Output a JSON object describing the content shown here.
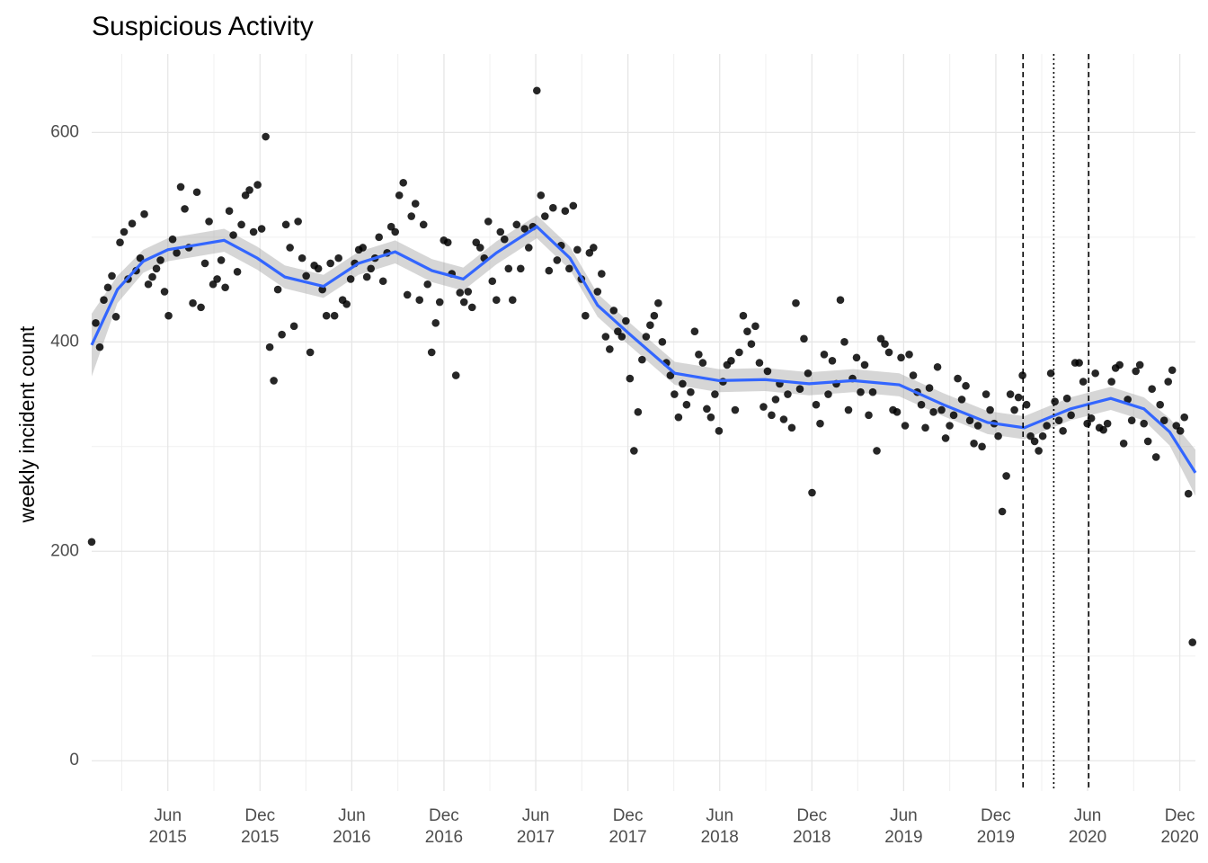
{
  "chart_data": {
    "type": "scatter",
    "title": "Suspicious Activity",
    "ylabel": "weekly incident count",
    "xlim": [
      2015,
      2021
    ],
    "ylim": [
      -29,
      675
    ],
    "xticks": [
      {
        "value": 2015.414,
        "label": "Jun\n2015"
      },
      {
        "value": 2015.915,
        "label": "Dec\n2015"
      },
      {
        "value": 2016.414,
        "label": "Jun\n2016"
      },
      {
        "value": 2016.915,
        "label": "Dec\n2016"
      },
      {
        "value": 2017.414,
        "label": "Jun\n2017"
      },
      {
        "value": 2017.915,
        "label": "Dec\n2017"
      },
      {
        "value": 2018.414,
        "label": "Jun\n2018"
      },
      {
        "value": 2018.915,
        "label": "Dec\n2018"
      },
      {
        "value": 2019.414,
        "label": "Jun\n2019"
      },
      {
        "value": 2019.915,
        "label": "Dec\n2019"
      },
      {
        "value": 2020.414,
        "label": "Jun\n2020"
      },
      {
        "value": 2020.915,
        "label": "Dec\n2020"
      }
    ],
    "yticks": [
      0,
      200,
      400,
      600
    ],
    "grid": true,
    "color": "#000000",
    "x": [
      2015,
      2015.022,
      2015.044,
      2015.066,
      2015.088,
      2015.11,
      2015.132,
      2015.154,
      2015.176,
      2015.198,
      2015.22,
      2015.242,
      2015.264,
      2015.286,
      2015.308,
      2015.33,
      2015.352,
      2015.374,
      2015.396,
      2015.418,
      2015.44,
      2015.462,
      2015.484,
      2015.506,
      2015.528,
      2015.55,
      2015.572,
      2015.594,
      2015.616,
      2015.638,
      2015.66,
      2015.682,
      2015.704,
      2015.726,
      2015.748,
      2015.77,
      2015.792,
      2015.814,
      2015.836,
      2015.858,
      2015.88,
      2015.902,
      2015.924,
      2015.946,
      2015.968,
      2015.99,
      2016.012,
      2016.034,
      2016.056,
      2016.078,
      2016.1,
      2016.122,
      2016.144,
      2016.166,
      2016.188,
      2016.21,
      2016.232,
      2016.254,
      2016.276,
      2016.298,
      2016.32,
      2016.342,
      2016.364,
      2016.386,
      2016.408,
      2016.43,
      2016.452,
      2016.474,
      2016.496,
      2016.518,
      2016.54,
      2016.562,
      2016.584,
      2016.606,
      2016.628,
      2016.65,
      2016.672,
      2016.694,
      2016.716,
      2016.738,
      2016.76,
      2016.782,
      2016.804,
      2016.826,
      2016.848,
      2016.87,
      2016.892,
      2016.914,
      2016.936,
      2016.958,
      2016.98,
      2017.002,
      2017.024,
      2017.046,
      2017.068,
      2017.09,
      2017.112,
      2017.134,
      2017.156,
      2017.178,
      2017.2,
      2017.222,
      2017.244,
      2017.266,
      2017.288,
      2017.31,
      2017.332,
      2017.354,
      2017.376,
      2017.398,
      2017.42,
      2017.442,
      2017.464,
      2017.486,
      2017.508,
      2017.53,
      2017.552,
      2017.574,
      2017.596,
      2017.618,
      2017.64,
      2017.662,
      2017.684,
      2017.706,
      2017.728,
      2017.75,
      2017.772,
      2017.794,
      2017.816,
      2017.838,
      2017.86,
      2017.882,
      2017.904,
      2017.926,
      2017.948,
      2017.97,
      2017.992,
      2018.014,
      2018.036,
      2018.058,
      2018.08,
      2018.102,
      2018.124,
      2018.146,
      2018.168,
      2018.19,
      2018.212,
      2018.234,
      2018.256,
      2018.278,
      2018.3,
      2018.322,
      2018.344,
      2018.366,
      2018.388,
      2018.41,
      2018.432,
      2018.454,
      2018.476,
      2018.498,
      2018.52,
      2018.542,
      2018.564,
      2018.586,
      2018.608,
      2018.63,
      2018.652,
      2018.674,
      2018.696,
      2018.718,
      2018.74,
      2018.762,
      2018.784,
      2018.806,
      2018.828,
      2018.85,
      2018.872,
      2018.894,
      2018.916,
      2018.938,
      2018.96,
      2018.982,
      2019.004,
      2019.026,
      2019.048,
      2019.07,
      2019.092,
      2019.114,
      2019.136,
      2019.158,
      2019.18,
      2019.202,
      2019.224,
      2019.246,
      2019.268,
      2019.29,
      2019.312,
      2019.334,
      2019.356,
      2019.378,
      2019.4,
      2019.422,
      2019.444,
      2019.466,
      2019.488,
      2019.51,
      2019.532,
      2019.554,
      2019.576,
      2019.598,
      2019.62,
      2019.642,
      2019.664,
      2019.686,
      2019.708,
      2019.73,
      2019.752,
      2019.774,
      2019.796,
      2019.818,
      2019.84,
      2019.862,
      2019.884,
      2019.906,
      2019.928,
      2019.95,
      2019.972,
      2019.994,
      2020.016,
      2020.038,
      2020.06,
      2020.082,
      2020.104,
      2020.126,
      2020.148,
      2020.17,
      2020.192,
      2020.214,
      2020.236,
      2020.258,
      2020.28,
      2020.302,
      2020.324,
      2020.346,
      2020.368,
      2020.39,
      2020.412,
      2020.434,
      2020.456,
      2020.478,
      2020.5,
      2020.522,
      2020.544,
      2020.566,
      2020.588,
      2020.61,
      2020.632,
      2020.654,
      2020.676,
      2020.698,
      2020.72,
      2020.742,
      2020.764,
      2020.786,
      2020.808,
      2020.83,
      2020.852,
      2020.874,
      2020.896,
      2020.918,
      2020.94,
      2020.962,
      2020.984
    ],
    "values": [
      209,
      418,
      395,
      440,
      452,
      463,
      424,
      495,
      505,
      460,
      513,
      468,
      480,
      522,
      455,
      462,
      470,
      478,
      448,
      425,
      498,
      485,
      548,
      527,
      490,
      437,
      543,
      433,
      475,
      515,
      455,
      460,
      478,
      452,
      525,
      502,
      467,
      512,
      540,
      545,
      505,
      550,
      508,
      596,
      395,
      363,
      450,
      407,
      512,
      490,
      415,
      515,
      480,
      463,
      390,
      473,
      470,
      450,
      425,
      475,
      425,
      480,
      440,
      436,
      460,
      475,
      488,
      490,
      462,
      470,
      480,
      500,
      458,
      485,
      510,
      505,
      540,
      552,
      445,
      520,
      532,
      440,
      512,
      455,
      390,
      418,
      438,
      497,
      495,
      465,
      368,
      447,
      438,
      448,
      433,
      495,
      490,
      480,
      515,
      458,
      440,
      505,
      498,
      470,
      440,
      512,
      470,
      508,
      490,
      510,
      640,
      540,
      520,
      468,
      528,
      478,
      492,
      525,
      470,
      530,
      488,
      460,
      425,
      485,
      490,
      448,
      465,
      405,
      393,
      430,
      410,
      405,
      420,
      365,
      296,
      333,
      383,
      405,
      416,
      425,
      437,
      400,
      380,
      368,
      350,
      328,
      360,
      340,
      352,
      410,
      388,
      380,
      336,
      328,
      350,
      315,
      362,
      378,
      382,
      335,
      390,
      425,
      410,
      398,
      415,
      380,
      338,
      372,
      330,
      345,
      360,
      326,
      350,
      318,
      437,
      355,
      403,
      370,
      256,
      340,
      322,
      388,
      350,
      382,
      360,
      440,
      400,
      335,
      365,
      385,
      352,
      378,
      330,
      352,
      296,
      403,
      398,
      390,
      335,
      333,
      385,
      320,
      388,
      368,
      352,
      340,
      318,
      356,
      333,
      376,
      335,
      308,
      320,
      330,
      365,
      345,
      358,
      325,
      303,
      320,
      300,
      350,
      335,
      322,
      310,
      238,
      272,
      350,
      335,
      347,
      368,
      340,
      310,
      305,
      296,
      310,
      320,
      370,
      343,
      325,
      315,
      346,
      330,
      380,
      380,
      362,
      322,
      327,
      370,
      318,
      316,
      322,
      362,
      375,
      378,
      303,
      345,
      325,
      372,
      378,
      322,
      305,
      355,
      290,
      340,
      325,
      362,
      373,
      320,
      315,
      328,
      255,
      113
    ],
    "smooth": {
      "color": "#3366ff",
      "band_color": "#999999",
      "x": [
        2015,
        2015.14,
        2015.28,
        2015.414,
        2015.55,
        2015.72,
        2015.9,
        2016.05,
        2016.26,
        2016.45,
        2016.65,
        2016.85,
        2017.02,
        2017.2,
        2017.42,
        2017.6,
        2017.75,
        2017.92,
        2018.17,
        2018.41,
        2018.66,
        2018.9,
        2019.14,
        2019.39,
        2019.63,
        2019.87,
        2020.07,
        2020.32,
        2020.54,
        2020.72,
        2020.86,
        2021
      ],
      "values": [
        397,
        450,
        477,
        488,
        492,
        497,
        480,
        462,
        453,
        475,
        486,
        468,
        460,
        485,
        510,
        480,
        435,
        408,
        370,
        363,
        364,
        360,
        363,
        359,
        340,
        323,
        318,
        336,
        346,
        336,
        314,
        275
      ],
      "lower": [
        367,
        437,
        466,
        477,
        481,
        486,
        469,
        451,
        442,
        464,
        475,
        457,
        449,
        474,
        499,
        469,
        424,
        397,
        359,
        352,
        353,
        349,
        352,
        348,
        329,
        312,
        307,
        325,
        335,
        325,
        301,
        253
      ],
      "upper": [
        427,
        463,
        488,
        499,
        503,
        508,
        491,
        473,
        464,
        486,
        497,
        479,
        471,
        496,
        521,
        491,
        446,
        419,
        381,
        374,
        375,
        371,
        374,
        370,
        351,
        334,
        329,
        347,
        357,
        347,
        327,
        297
      ]
    },
    "vlines": [
      {
        "x": 2020.063,
        "linestyle": "dashed"
      },
      {
        "x": 2020.23,
        "linestyle": "dotted"
      },
      {
        "x": 2020.42,
        "linestyle": "dashed"
      }
    ]
  }
}
